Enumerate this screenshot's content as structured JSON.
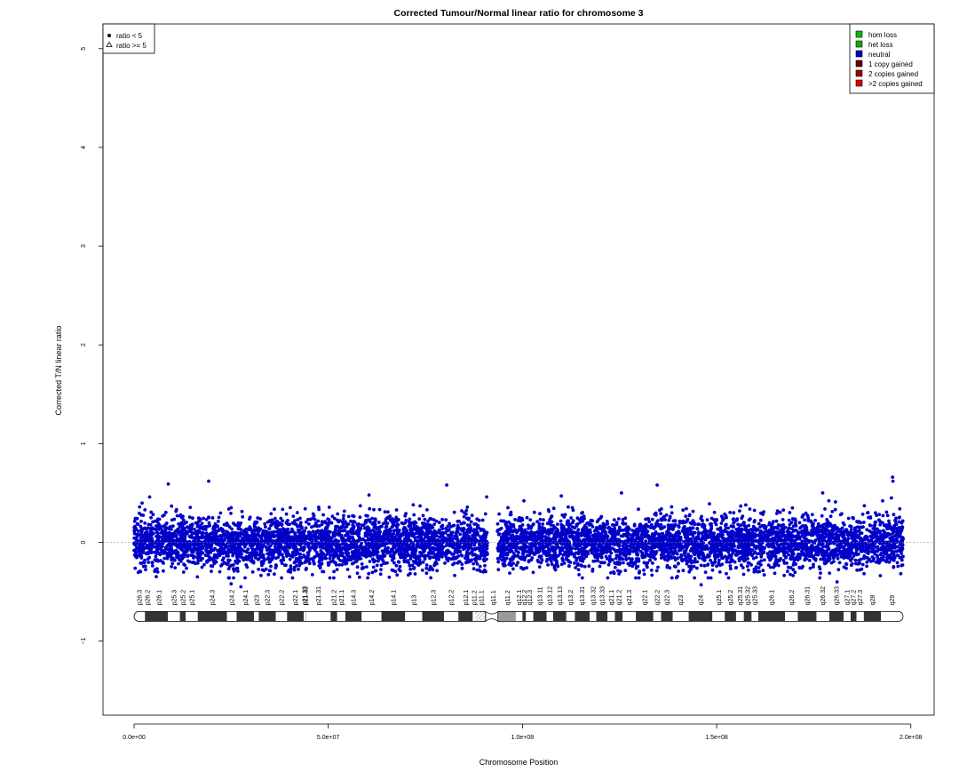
{
  "chart_data": {
    "type": "scatter",
    "title": "Corrected Tumour/Normal linear ratio for chromosome  3",
    "xlabel": "Chromosome Position",
    "ylabel": "Corrected T/N linear ratio",
    "xlim": [
      -8000000,
      206000000
    ],
    "ylim": [
      -1.75,
      5.25
    ],
    "x_ticks": [
      0,
      50000000,
      100000000,
      150000000,
      200000000
    ],
    "x_tick_labels": [
      "0.0e+00",
      "5.0e+07",
      "1.0e+08",
      "1.5e+08",
      "2.0e+08"
    ],
    "y_ticks": [
      -1,
      0,
      1,
      2,
      3,
      4,
      5
    ],
    "y_tick_labels": [
      "−1",
      "0",
      "1",
      "2",
      "3",
      "4",
      "5"
    ],
    "reference_line": 0,
    "grid": false,
    "point_color": "#0000c8",
    "series": [
      {
        "name": "neutral",
        "segments": [
          {
            "start": 0,
            "end": 91000000,
            "mean": 0.0,
            "spread": 0.13
          },
          {
            "start": 93500000,
            "end": 198000000,
            "mean": 0.0,
            "spread": 0.13
          }
        ],
        "outliers": [
          {
            "x": 4000000,
            "y": 0.46
          },
          {
            "x": 8800000,
            "y": 0.59
          },
          {
            "x": 19200000,
            "y": 0.62
          },
          {
            "x": 60500000,
            "y": 0.48
          },
          {
            "x": 80500000,
            "y": 0.58
          },
          {
            "x": 90800000,
            "y": 0.46
          },
          {
            "x": 110000000,
            "y": 0.47
          },
          {
            "x": 125500000,
            "y": 0.5
          },
          {
            "x": 134700000,
            "y": 0.58
          },
          {
            "x": 177300000,
            "y": 0.5
          },
          {
            "x": 195300000,
            "y": 0.66
          },
          {
            "x": 195400000,
            "y": 0.62
          },
          {
            "x": 195000000,
            "y": 0.45
          },
          {
            "x": 25000000,
            "y": -0.42
          },
          {
            "x": 27500000,
            "y": -0.45
          },
          {
            "x": 146000000,
            "y": -0.43
          },
          {
            "x": 181000000,
            "y": -0.4
          }
        ]
      }
    ],
    "legend_left": {
      "position": "top-left",
      "entries": [
        {
          "label": "ratio < 5",
          "symbol": "dot"
        },
        {
          "label": "ratio >= 5",
          "symbol": "triangle"
        }
      ]
    },
    "legend_right": {
      "position": "top-right",
      "entries": [
        {
          "label": "hom loss",
          "color": "#00c000"
        },
        {
          "label": "het loss",
          "color": "#00b000"
        },
        {
          "label": "neutral",
          "color": "#0000c8"
        },
        {
          "label": "1 copy gained",
          "color": "#6b0000"
        },
        {
          "label": "2 copies gained",
          "color": "#a00000"
        },
        {
          "label": ">2 copies gained",
          "color": "#e00000"
        }
      ]
    },
    "ideogram": {
      "y_value": -0.75,
      "centromere": [
        90500000,
        93700000
      ],
      "bands": [
        {
          "name": "p26.3",
          "start": 0,
          "end": 2800000,
          "stain": "white"
        },
        {
          "name": "p26.2",
          "start": 2800000,
          "end": 4000000,
          "stain": "black"
        },
        {
          "name": "p26.1",
          "start": 4000000,
          "end": 8700000,
          "stain": "black"
        },
        {
          "name": "p25.3",
          "start": 8700000,
          "end": 11800000,
          "stain": "white"
        },
        {
          "name": "p25.2",
          "start": 11800000,
          "end": 13300000,
          "stain": "black"
        },
        {
          "name": "p25.1",
          "start": 13300000,
          "end": 16400000,
          "stain": "white"
        },
        {
          "name": "p24.3",
          "start": 16400000,
          "end": 23900000,
          "stain": "black"
        },
        {
          "name": "p24.2",
          "start": 23900000,
          "end": 26400000,
          "stain": "white"
        },
        {
          "name": "p24.1",
          "start": 26400000,
          "end": 30900000,
          "stain": "black"
        },
        {
          "name": "p23",
          "start": 30900000,
          "end": 32100000,
          "stain": "white"
        },
        {
          "name": "p22.3",
          "start": 32100000,
          "end": 36500000,
          "stain": "black"
        },
        {
          "name": "p22.2",
          "start": 36500000,
          "end": 39400000,
          "stain": "white"
        },
        {
          "name": "p22.1",
          "start": 39400000,
          "end": 43700000,
          "stain": "black"
        },
        {
          "name": "p21.33",
          "start": 43700000,
          "end": 44100000,
          "stain": "white"
        },
        {
          "name": "p21.32",
          "start": 44100000,
          "end": 44200000,
          "stain": "black"
        },
        {
          "name": "p21.31",
          "start": 44200000,
          "end": 50600000,
          "stain": "white"
        },
        {
          "name": "p21.2",
          "start": 50600000,
          "end": 52300000,
          "stain": "black"
        },
        {
          "name": "p21.1",
          "start": 52300000,
          "end": 54400000,
          "stain": "white"
        },
        {
          "name": "p14.3",
          "start": 54400000,
          "end": 58600000,
          "stain": "black"
        },
        {
          "name": "p14.2",
          "start": 58600000,
          "end": 63700000,
          "stain": "white"
        },
        {
          "name": "p14.1",
          "start": 63700000,
          "end": 69800000,
          "stain": "black"
        },
        {
          "name": "p13",
          "start": 69800000,
          "end": 74200000,
          "stain": "white"
        },
        {
          "name": "p12.3",
          "start": 74200000,
          "end": 79800000,
          "stain": "black"
        },
        {
          "name": "p12.2",
          "start": 79800000,
          "end": 83500000,
          "stain": "white"
        },
        {
          "name": "p12.1",
          "start": 83500000,
          "end": 87200000,
          "stain": "black"
        },
        {
          "name": "p11.2",
          "start": 87200000,
          "end": 87900000,
          "stain": "white"
        },
        {
          "name": "p11.1",
          "start": 87900000,
          "end": 91000000,
          "stain": "stalk"
        },
        {
          "name": "q11.1",
          "start": 91000000,
          "end": 93900000,
          "stain": "stalk"
        },
        {
          "name": "q11.2",
          "start": 93900000,
          "end": 98300000,
          "stain": "grey"
        },
        {
          "name": "q12.1",
          "start": 98300000,
          "end": 100000000,
          "stain": "white"
        },
        {
          "name": "q12.2",
          "start": 100000000,
          "end": 100900000,
          "stain": "black"
        },
        {
          "name": "q12.3",
          "start": 100900000,
          "end": 102800000,
          "stain": "white"
        },
        {
          "name": "q13.11",
          "start": 102800000,
          "end": 106200000,
          "stain": "black"
        },
        {
          "name": "q13.12",
          "start": 106200000,
          "end": 107900000,
          "stain": "white"
        },
        {
          "name": "q13.13",
          "start": 107900000,
          "end": 111300000,
          "stain": "black"
        },
        {
          "name": "q13.2",
          "start": 111300000,
          "end": 113500000,
          "stain": "white"
        },
        {
          "name": "q13.31",
          "start": 113500000,
          "end": 117300000,
          "stain": "black"
        },
        {
          "name": "q13.32",
          "start": 117300000,
          "end": 119000000,
          "stain": "white"
        },
        {
          "name": "q13.33",
          "start": 119000000,
          "end": 121900000,
          "stain": "black"
        },
        {
          "name": "q21.1",
          "start": 121900000,
          "end": 123800000,
          "stain": "white"
        },
        {
          "name": "q21.2",
          "start": 123800000,
          "end": 125800000,
          "stain": "black"
        },
        {
          "name": "q21.3",
          "start": 125800000,
          "end": 129200000,
          "stain": "white"
        },
        {
          "name": "q22.1",
          "start": 129200000,
          "end": 133700000,
          "stain": "black"
        },
        {
          "name": "q22.2",
          "start": 133700000,
          "end": 135700000,
          "stain": "white"
        },
        {
          "name": "q22.3",
          "start": 135700000,
          "end": 138700000,
          "stain": "black"
        },
        {
          "name": "q23",
          "start": 138700000,
          "end": 142800000,
          "stain": "white"
        },
        {
          "name": "q24",
          "start": 142800000,
          "end": 148900000,
          "stain": "black"
        },
        {
          "name": "q25.1",
          "start": 148900000,
          "end": 152100000,
          "stain": "white"
        },
        {
          "name": "q25.2",
          "start": 152100000,
          "end": 155000000,
          "stain": "black"
        },
        {
          "name": "q25.31",
          "start": 155000000,
          "end": 157000000,
          "stain": "white"
        },
        {
          "name": "q25.32",
          "start": 157000000,
          "end": 159000000,
          "stain": "black"
        },
        {
          "name": "q25.33",
          "start": 159000000,
          "end": 160700000,
          "stain": "white"
        },
        {
          "name": "q26.1",
          "start": 160700000,
          "end": 167600000,
          "stain": "black"
        },
        {
          "name": "q26.2",
          "start": 167600000,
          "end": 170900000,
          "stain": "white"
        },
        {
          "name": "q26.31",
          "start": 170900000,
          "end": 175700000,
          "stain": "black"
        },
        {
          "name": "q26.32",
          "start": 175700000,
          "end": 179000000,
          "stain": "white"
        },
        {
          "name": "q26.33",
          "start": 179000000,
          "end": 182700000,
          "stain": "black"
        },
        {
          "name": "q27.1",
          "start": 182700000,
          "end": 184500000,
          "stain": "white"
        },
        {
          "name": "q27.2",
          "start": 184500000,
          "end": 186000000,
          "stain": "black"
        },
        {
          "name": "q27.3",
          "start": 186000000,
          "end": 187900000,
          "stain": "white"
        },
        {
          "name": "q28",
          "start": 187900000,
          "end": 192300000,
          "stain": "black"
        },
        {
          "name": "q29",
          "start": 192300000,
          "end": 198000000,
          "stain": "white"
        }
      ]
    }
  }
}
